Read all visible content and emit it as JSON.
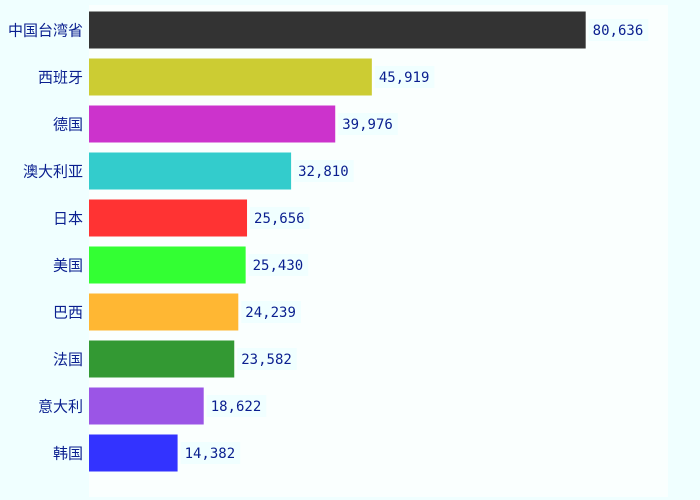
{
  "chart_data": {
    "type": "bar",
    "orientation": "horizontal",
    "sort": "descending",
    "categories": [
      "中国台湾省",
      "西班牙",
      "德国",
      "澳大利亚",
      "日本",
      "美国",
      "巴西",
      "法国",
      "意大利",
      "韩国"
    ],
    "values": [
      80636,
      45919,
      39976,
      32810,
      25656,
      25430,
      24239,
      23582,
      18622,
      14382
    ],
    "value_labels": [
      "80,636",
      "45,919",
      "39,976",
      "32,810",
      "25,656",
      "25,430",
      "24,239",
      "23,582",
      "18,622",
      "14,382"
    ],
    "bar_colors": [
      "#333333",
      "#cccc33",
      "#cc33cc",
      "#33cccc",
      "#ff3333",
      "#33ff33",
      "#ffb733",
      "#339933",
      "#9b55e6",
      "#3333ff"
    ],
    "xlim": [
      0,
      94000
    ],
    "grid": false,
    "legend": "none",
    "title": "",
    "xlabel": "",
    "ylabel": ""
  },
  "colors": {
    "page_background": "#f0ffff",
    "plot_background": "#fafffe",
    "label_text": "#0a1f8f",
    "value_label_background": "#f0ffff"
  }
}
